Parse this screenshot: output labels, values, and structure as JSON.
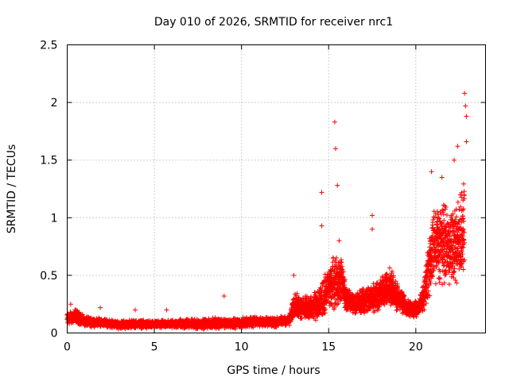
{
  "chart_data": {
    "type": "scatter",
    "title": "Day 010 of 2026, SRMTID for receiver nrc1",
    "xlabel": "GPS time / hours",
    "ylabel": "SRMTID / TECUs",
    "xlim": [
      0,
      24
    ],
    "ylim": [
      0,
      2.5
    ],
    "xticks": [
      0,
      5,
      10,
      15,
      20
    ],
    "xtick_labels": [
      "0",
      "5",
      "10",
      "15",
      "20"
    ],
    "yticks": [
      0,
      0.5,
      1,
      1.5,
      2,
      2.5
    ],
    "ytick_labels": [
      "0",
      "0.5",
      "1",
      "1.5",
      "2",
      "2.5"
    ],
    "grid": true,
    "marker": "+",
    "series": [
      {
        "name": "SRMTID",
        "color": "#ff0000",
        "envelope_hours": [
          0,
          0.5,
          1,
          2,
          3,
          4,
          5,
          6,
          7,
          8,
          9,
          9.5,
          10,
          11,
          12,
          12.8,
          13,
          13.5,
          14,
          14.5,
          14.7,
          15,
          15.4,
          15.8,
          16,
          16.5,
          17,
          17.5,
          18,
          18.5,
          19,
          19.5,
          20,
          20.3,
          20.5,
          20.8,
          21,
          21.5,
          22,
          22.5,
          22.8
        ],
        "envelope_mean": [
          0.12,
          0.15,
          0.1,
          0.09,
          0.07,
          0.08,
          0.07,
          0.08,
          0.08,
          0.08,
          0.09,
          0.08,
          0.09,
          0.1,
          0.09,
          0.12,
          0.25,
          0.22,
          0.22,
          0.25,
          0.3,
          0.4,
          0.45,
          0.45,
          0.3,
          0.25,
          0.28,
          0.3,
          0.35,
          0.4,
          0.3,
          0.22,
          0.2,
          0.25,
          0.35,
          0.6,
          0.75,
          0.8,
          0.75,
          0.8,
          0.9
        ],
        "envelope_spread": [
          0.06,
          0.07,
          0.05,
          0.04,
          0.04,
          0.04,
          0.04,
          0.04,
          0.05,
          0.05,
          0.05,
          0.05,
          0.05,
          0.05,
          0.05,
          0.06,
          0.12,
          0.1,
          0.12,
          0.15,
          0.2,
          0.2,
          0.25,
          0.2,
          0.12,
          0.1,
          0.12,
          0.15,
          0.15,
          0.18,
          0.12,
          0.08,
          0.08,
          0.1,
          0.15,
          0.3,
          0.35,
          0.4,
          0.35,
          0.4,
          0.45
        ],
        "peaks": [
          {
            "hour": 0.2,
            "value": 0.25
          },
          {
            "hour": 1.9,
            "value": 0.22
          },
          {
            "hour": 3.9,
            "value": 0.2
          },
          {
            "hour": 5.7,
            "value": 0.2
          },
          {
            "hour": 9.0,
            "value": 0.32
          },
          {
            "hour": 13.0,
            "value": 0.5
          },
          {
            "hour": 14.6,
            "value": 1.22
          },
          {
            "hour": 14.6,
            "value": 0.93
          },
          {
            "hour": 15.35,
            "value": 1.83
          },
          {
            "hour": 15.4,
            "value": 1.6
          },
          {
            "hour": 15.5,
            "value": 1.28
          },
          {
            "hour": 15.6,
            "value": 0.8
          },
          {
            "hour": 17.5,
            "value": 1.02
          },
          {
            "hour": 17.5,
            "value": 0.9
          },
          {
            "hour": 20.9,
            "value": 1.4
          },
          {
            "hour": 21.5,
            "value": 1.35
          },
          {
            "hour": 22.2,
            "value": 1.5
          },
          {
            "hour": 22.4,
            "value": 1.62
          },
          {
            "hour": 22.8,
            "value": 2.08
          },
          {
            "hour": 22.85,
            "value": 1.97
          },
          {
            "hour": 22.9,
            "value": 1.88
          },
          {
            "hour": 22.9,
            "value": 1.66
          }
        ]
      }
    ]
  }
}
